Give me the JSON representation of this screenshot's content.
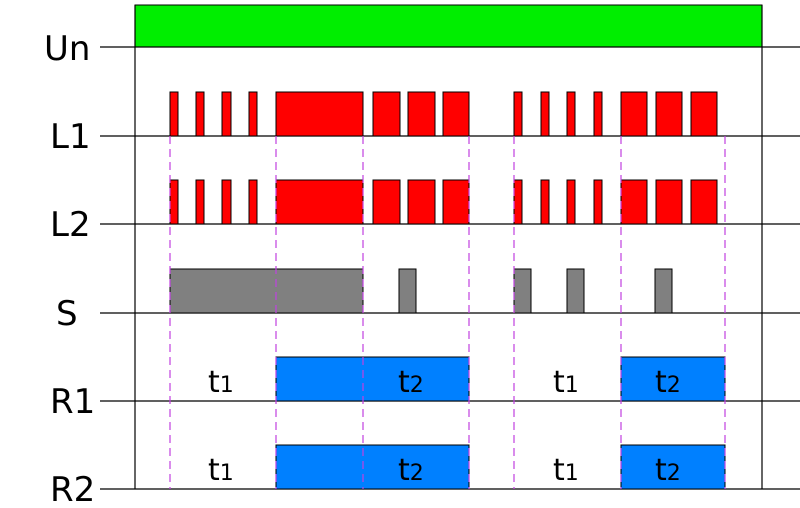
{
  "rows": [
    "Un",
    "L1",
    "L2",
    "S",
    "R1",
    "R2"
  ],
  "annotations": [
    {
      "base": "t",
      "sub": "1"
    },
    {
      "base": "t",
      "sub": "2"
    },
    {
      "base": "t",
      "sub": "1"
    },
    {
      "base": "t",
      "sub": "2"
    },
    {
      "base": "t",
      "sub": "1"
    },
    {
      "base": "t",
      "sub": "2"
    },
    {
      "base": "t",
      "sub": "1"
    },
    {
      "base": "t",
      "sub": "2"
    }
  ]
}
